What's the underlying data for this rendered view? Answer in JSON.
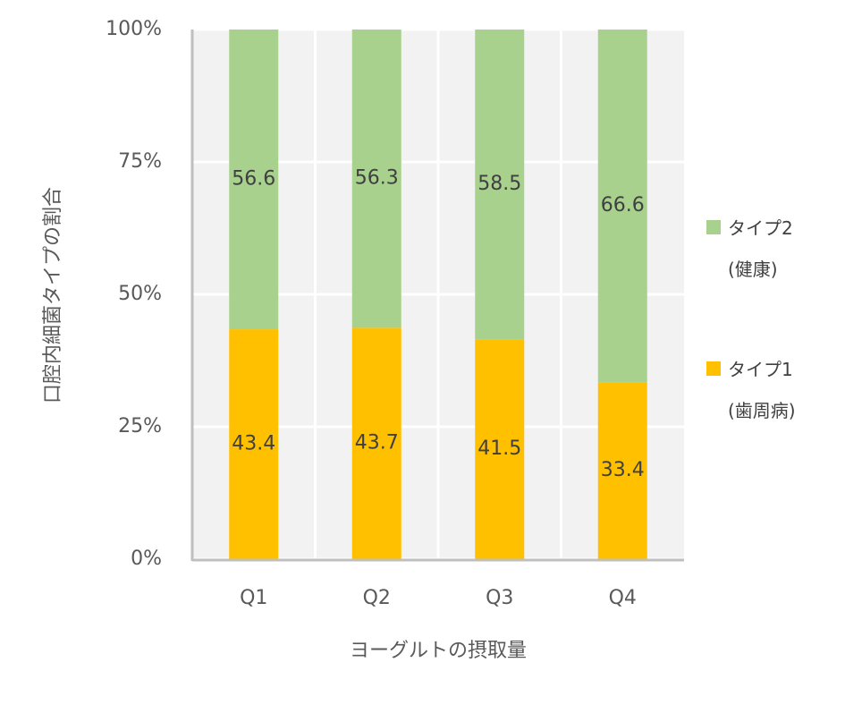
{
  "chart_data": {
    "type": "stacked_bar_100",
    "x_label": "ヨーグルトの摂取量",
    "y_label": "口腔内細菌タイプの割合",
    "categories": [
      "Q1",
      "Q2",
      "Q3",
      "Q4"
    ],
    "series": [
      {
        "name": "タイプ1\n(歯周病)",
        "color": "#ffc000",
        "values": [
          43.4,
          43.7,
          41.5,
          33.4
        ]
      },
      {
        "name": "タイプ2\n(健康)",
        "color": "#a9d18e",
        "values": [
          56.6,
          56.3,
          58.5,
          66.6
        ]
      }
    ],
    "ylim": [
      0,
      100
    ],
    "yticks": [
      {
        "value": 0,
        "label": "0%"
      },
      {
        "value": 25,
        "label": "25%"
      },
      {
        "value": 50,
        "label": "50%"
      },
      {
        "value": 75,
        "label": "75%"
      },
      {
        "value": 100,
        "label": "100%"
      }
    ],
    "grid": true
  }
}
